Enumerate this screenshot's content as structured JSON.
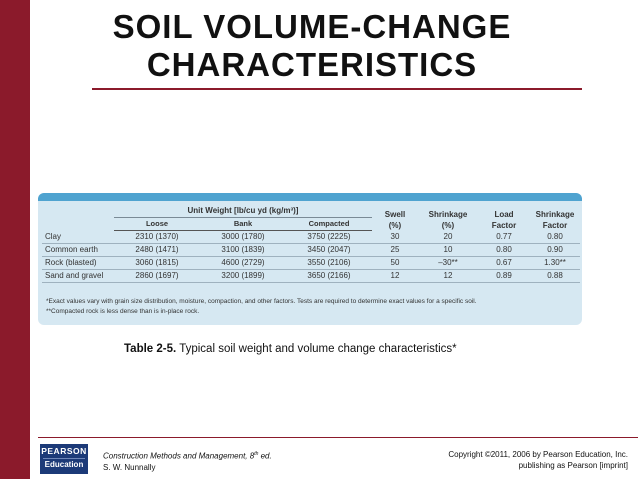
{
  "slide": {
    "title_line1": "SOIL VOLUME-CHANGE",
    "title_line2": "CHARACTERISTICS"
  },
  "table": {
    "group_header": "Unit Weight [lb/cu yd (kg/m³)]",
    "columns": [
      "Loose",
      "Bank",
      "Compacted"
    ],
    "swell_l1": "Swell",
    "swell_l2": "(%)",
    "shrink_l1": "Shrinkage",
    "shrink_l2": "(%)",
    "load_l1": "Load",
    "load_l2": "Factor",
    "sf_l1": "Shrinkage",
    "sf_l2": "Factor",
    "rows": [
      {
        "name": "Clay",
        "loose": "2310 (1370)",
        "bank": "3000 (1780)",
        "compacted": "3750 (2225)",
        "swell": "30",
        "shrinkage": "20",
        "load_factor": "0.77",
        "shrinkage_factor": "0.80"
      },
      {
        "name": "Common earth",
        "loose": "2480 (1471)",
        "bank": "3100 (1839)",
        "compacted": "3450 (2047)",
        "swell": "25",
        "shrinkage": "10",
        "load_factor": "0.80",
        "shrinkage_factor": "0.90"
      },
      {
        "name": "Rock (blasted)",
        "loose": "3060 (1815)",
        "bank": "4600 (2729)",
        "compacted": "3550 (2106)",
        "swell": "50",
        "shrinkage": "–30**",
        "load_factor": "0.67",
        "shrinkage_factor": "1.30**"
      },
      {
        "name": "Sand and gravel",
        "loose": "2860 (1697)",
        "bank": "3200 (1899)",
        "compacted": "3650 (2166)",
        "swell": "12",
        "shrinkage": "12",
        "load_factor": "0.89",
        "shrinkage_factor": "0.88"
      }
    ],
    "footnote1": "*Exact values vary with grain size distribution, moisture, compaction, and other factors. Tests are required to determine exact values for a specific soil.",
    "footnote2": "**Compacted rock is less dense than is in-place rock."
  },
  "caption": {
    "label": "Table 2-5.",
    "text": "Typical soil weight and volume change characteristics*"
  },
  "footer": {
    "logo_line1": "PEARSON",
    "logo_line2": "Education",
    "book_title": "Construction Methods and Management, 8",
    "edition_sup": "th",
    "edition_suffix": " ed.",
    "author": "S. W. Nunnally",
    "copyright": "Copyright ©2011, 2006 by Pearson Education, Inc.",
    "publisher": "publishing as Pearson [imprint]"
  },
  "colors": {
    "accent": "#8b1a2b",
    "table_bg": "#d6e8f2",
    "table_band": "#4fa3d0",
    "logo_bg": "#1c3a78"
  }
}
